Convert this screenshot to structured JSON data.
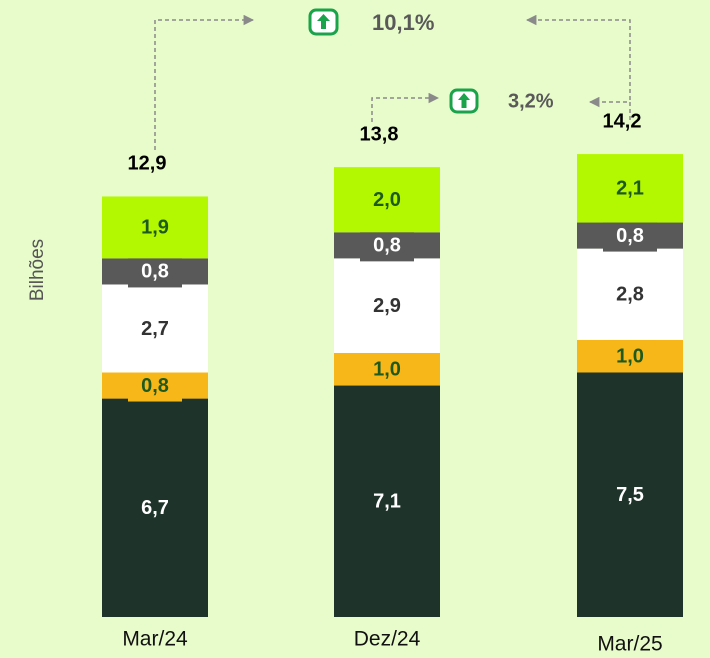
{
  "chart_data": {
    "type": "bar",
    "stacked": true,
    "ylabel": "Bilhões",
    "categories": [
      "Mar/24",
      "Dez/24",
      "Mar/25"
    ],
    "series": [
      {
        "color": "#1e3329",
        "values": [
          6.7,
          7.1,
          7.5
        ],
        "value_labels": [
          "6,7",
          "7,1",
          "7,5"
        ]
      },
      {
        "color": "#f7b718",
        "values": [
          0.8,
          1.0,
          1.0
        ],
        "value_labels": [
          "0,8",
          "1,0",
          "1,0"
        ]
      },
      {
        "color": "#ffffff",
        "values": [
          2.7,
          2.9,
          2.8
        ],
        "value_labels": [
          "2,7",
          "2,9",
          "2,8"
        ]
      },
      {
        "color": "#595959",
        "values": [
          0.8,
          0.8,
          0.8
        ],
        "value_labels": [
          "0,8",
          "0,8",
          "0,8"
        ]
      },
      {
        "color": "#b3f700",
        "values": [
          1.9,
          2.0,
          2.1
        ],
        "value_labels": [
          "1,9",
          "2,0",
          "2,1"
        ]
      }
    ],
    "totals": [
      12.9,
      13.8,
      14.2
    ],
    "total_labels": [
      "12,9",
      "13,8",
      "14,2"
    ],
    "annotations": [
      {
        "text": "10,1%"
      },
      {
        "text": "3,2%"
      }
    ]
  }
}
